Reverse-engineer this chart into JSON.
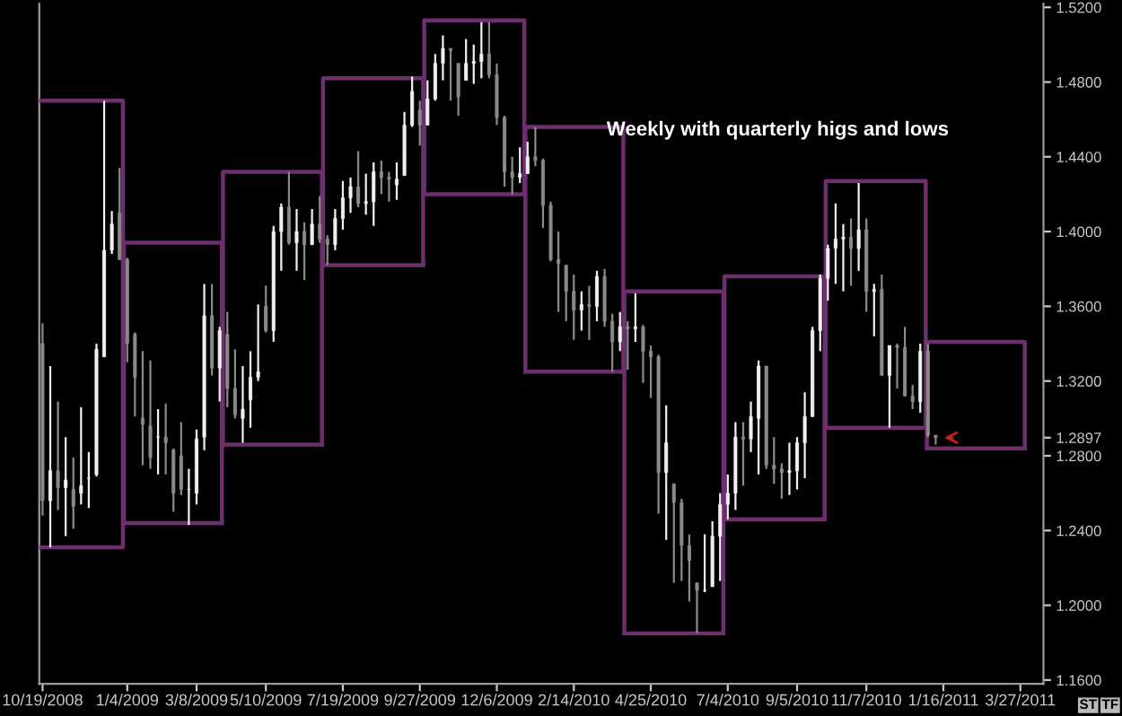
{
  "chart_data": {
    "type": "candlestick",
    "title": "Weekly with quarterly higs and lows",
    "xlim": [
      "2008-10-16",
      "2011-04-17"
    ],
    "ylim": [
      1.158,
      1.522
    ],
    "xticks": [
      {
        "value": "2008-10-19",
        "label": "10/19/2008"
      },
      {
        "value": "2009-01-04",
        "label": "1/4/2009"
      },
      {
        "value": "2009-03-08",
        "label": "3/8/2009"
      },
      {
        "value": "2009-05-10",
        "label": "5/10/2009"
      },
      {
        "value": "2009-07-19",
        "label": "7/19/2009"
      },
      {
        "value": "2009-09-27",
        "label": "9/27/2009"
      },
      {
        "value": "2009-12-06",
        "label": "12/6/2009"
      },
      {
        "value": "2010-02-14",
        "label": "2/14/2010"
      },
      {
        "value": "2010-04-25",
        "label": "4/25/2010"
      },
      {
        "value": "2010-07-04",
        "label": "7/4/2010"
      },
      {
        "value": "2010-09-05",
        "label": "9/5/2010"
      },
      {
        "value": "2010-11-07",
        "label": "11/7/2010"
      },
      {
        "value": "2011-01-16",
        "label": "1/16/2011"
      },
      {
        "value": "2011-03-27",
        "label": "3/27/2011"
      }
    ],
    "yticks": [
      {
        "value": 1.16,
        "label": "1.1600"
      },
      {
        "value": 1.2,
        "label": "1.2000"
      },
      {
        "value": 1.24,
        "label": "1.2400"
      },
      {
        "value": 1.28,
        "label": "1.2800"
      },
      {
        "value": 1.2897,
        "label": "1.2897"
      },
      {
        "value": 1.32,
        "label": "1.3200"
      },
      {
        "value": 1.36,
        "label": "1.3600"
      },
      {
        "value": 1.4,
        "label": "1.4000"
      },
      {
        "value": 1.44,
        "label": "1.4400"
      },
      {
        "value": 1.48,
        "label": "1.4800"
      },
      {
        "value": 1.52,
        "label": "1.5200"
      }
    ],
    "annotations": [
      "ST",
      "TF"
    ],
    "color": [
      "#f0f0f0",
      "#8a8a8a"
    ],
    "x": [
      "2008-10-19",
      "2008-10-26",
      "2008-11-02",
      "2008-11-09",
      "2008-11-16",
      "2008-11-23",
      "2008-11-30",
      "2008-12-07",
      "2008-12-14",
      "2008-12-21",
      "2008-12-28",
      "2009-01-04",
      "2009-01-11",
      "2009-01-18",
      "2009-01-25",
      "2009-02-01",
      "2009-02-08",
      "2009-02-15",
      "2009-02-22",
      "2009-03-01",
      "2009-03-08",
      "2009-03-15",
      "2009-03-22",
      "2009-03-29",
      "2009-04-05",
      "2009-04-12",
      "2009-04-19",
      "2009-04-26",
      "2009-05-03",
      "2009-05-10",
      "2009-05-17",
      "2009-05-24",
      "2009-05-31",
      "2009-06-07",
      "2009-06-14",
      "2009-06-21",
      "2009-06-28",
      "2009-07-05",
      "2009-07-12",
      "2009-07-19",
      "2009-07-26",
      "2009-08-02",
      "2009-08-09",
      "2009-08-16",
      "2009-08-23",
      "2009-08-30",
      "2009-09-06",
      "2009-09-13",
      "2009-09-20",
      "2009-09-27",
      "2009-10-04",
      "2009-10-11",
      "2009-10-18",
      "2009-10-25",
      "2009-11-01",
      "2009-11-08",
      "2009-11-15",
      "2009-11-22",
      "2009-11-29",
      "2009-12-06",
      "2009-12-13",
      "2009-12-20",
      "2009-12-27",
      "2010-01-03",
      "2010-01-10",
      "2010-01-17",
      "2010-01-24",
      "2010-01-31",
      "2010-02-07",
      "2010-02-14",
      "2010-02-21",
      "2010-02-28",
      "2010-03-07",
      "2010-03-14",
      "2010-03-21",
      "2010-03-28",
      "2010-04-04",
      "2010-04-11",
      "2010-04-18",
      "2010-04-25",
      "2010-05-02",
      "2010-05-09",
      "2010-05-16",
      "2010-05-23",
      "2010-05-30",
      "2010-06-06",
      "2010-06-13",
      "2010-06-20",
      "2010-06-27",
      "2010-07-04",
      "2010-07-11",
      "2010-07-18",
      "2010-07-25",
      "2010-08-01",
      "2010-08-08",
      "2010-08-15",
      "2010-08-22",
      "2010-08-29",
      "2010-09-05",
      "2010-09-12",
      "2010-09-19",
      "2010-09-26",
      "2010-10-03",
      "2010-10-10",
      "2010-10-17",
      "2010-10-24",
      "2010-10-31",
      "2010-11-07",
      "2010-11-14",
      "2010-11-21",
      "2010-11-28",
      "2010-12-05",
      "2010-12-12",
      "2010-12-19",
      "2010-12-26",
      "2011-01-02",
      "2011-01-09"
    ],
    "ohlc": [
      [
        1.34,
        1.351,
        1.248,
        1.256
      ],
      [
        1.256,
        1.328,
        1.231,
        1.272
      ],
      [
        1.272,
        1.309,
        1.251,
        1.263
      ],
      [
        1.263,
        1.29,
        1.237,
        1.267
      ],
      [
        1.262,
        1.279,
        1.241,
        1.253
      ],
      [
        1.26,
        1.306,
        1.254,
        1.264
      ],
      [
        1.268,
        1.282,
        1.252,
        1.268
      ],
      [
        1.27,
        1.34,
        1.269,
        1.337
      ],
      [
        1.333,
        1.47,
        1.333,
        1.39
      ],
      [
        1.39,
        1.411,
        1.388,
        1.404
      ],
      [
        1.41,
        1.434,
        1.385,
        1.385
      ],
      [
        1.385,
        1.386,
        1.33,
        1.34
      ],
      [
        1.345,
        1.346,
        1.301,
        1.322
      ],
      [
        1.3,
        1.336,
        1.275,
        1.297
      ],
      [
        1.296,
        1.331,
        1.273,
        1.279
      ],
      [
        1.29,
        1.305,
        1.27,
        1.29
      ],
      [
        1.29,
        1.308,
        1.27,
        1.287
      ],
      [
        1.283,
        1.284,
        1.25,
        1.26
      ],
      [
        1.28,
        1.298,
        1.259,
        1.262
      ],
      [
        1.262,
        1.273,
        1.243,
        1.262
      ],
      [
        1.26,
        1.294,
        1.254,
        1.289
      ],
      [
        1.29,
        1.372,
        1.283,
        1.355
      ],
      [
        1.355,
        1.372,
        1.323,
        1.327
      ],
      [
        1.327,
        1.349,
        1.309,
        1.347
      ],
      [
        1.345,
        1.357,
        1.306,
        1.316
      ],
      [
        1.316,
        1.337,
        1.3,
        1.302
      ],
      [
        1.3,
        1.328,
        1.287,
        1.305
      ],
      [
        1.31,
        1.336,
        1.295,
        1.322
      ],
      [
        1.322,
        1.361,
        1.32,
        1.325
      ],
      [
        1.36,
        1.371,
        1.346,
        1.347
      ],
      [
        1.347,
        1.403,
        1.341,
        1.4
      ],
      [
        1.4,
        1.415,
        1.379,
        1.413
      ],
      [
        1.413,
        1.432,
        1.393,
        1.394
      ],
      [
        1.394,
        1.412,
        1.379,
        1.4
      ],
      [
        1.4,
        1.405,
        1.374,
        1.393
      ],
      [
        1.393,
        1.412,
        1.393,
        1.404
      ],
      [
        1.404,
        1.419,
        1.394,
        1.396
      ],
      [
        1.396,
        1.398,
        1.382,
        1.393
      ],
      [
        1.393,
        1.412,
        1.39,
        1.407
      ],
      [
        1.407,
        1.427,
        1.401,
        1.418
      ],
      [
        1.418,
        1.429,
        1.41,
        1.424
      ],
      [
        1.424,
        1.443,
        1.413,
        1.415
      ],
      [
        1.415,
        1.431,
        1.409,
        1.416
      ],
      [
        1.416,
        1.437,
        1.403,
        1.432
      ],
      [
        1.432,
        1.438,
        1.42,
        1.429
      ],
      [
        1.429,
        1.432,
        1.416,
        1.428
      ],
      [
        1.425,
        1.437,
        1.417,
        1.428
      ],
      [
        1.43,
        1.464,
        1.43,
        1.457
      ],
      [
        1.457,
        1.483,
        1.456,
        1.475
      ],
      [
        1.465,
        1.47,
        1.446,
        1.457
      ],
      [
        1.457,
        1.481,
        1.457,
        1.471
      ],
      [
        1.471,
        1.495,
        1.47,
        1.49
      ],
      [
        1.49,
        1.505,
        1.481,
        1.498
      ],
      [
        1.498,
        1.498,
        1.47,
        1.497
      ],
      [
        1.49,
        1.49,
        1.462,
        1.472
      ],
      [
        1.481,
        1.503,
        1.481,
        1.49
      ],
      [
        1.49,
        1.5,
        1.479,
        1.491
      ],
      [
        1.491,
        1.512,
        1.482,
        1.495
      ],
      [
        1.495,
        1.512,
        1.482,
        1.484
      ],
      [
        1.484,
        1.49,
        1.457,
        1.461
      ],
      [
        1.461,
        1.462,
        1.424,
        1.432
      ],
      [
        1.432,
        1.44,
        1.42,
        1.429
      ],
      [
        1.429,
        1.445,
        1.426,
        1.431
      ],
      [
        1.431,
        1.448,
        1.431,
        1.44
      ],
      [
        1.44,
        1.456,
        1.435,
        1.438
      ],
      [
        1.438,
        1.439,
        1.402,
        1.414
      ],
      [
        1.414,
        1.416,
        1.384,
        1.385
      ],
      [
        1.385,
        1.4,
        1.357,
        1.383
      ],
      [
        1.382,
        1.382,
        1.352,
        1.368
      ],
      [
        1.368,
        1.377,
        1.342,
        1.358
      ],
      [
        1.358,
        1.368,
        1.347,
        1.361
      ],
      [
        1.361,
        1.371,
        1.342,
        1.36
      ],
      [
        1.36,
        1.379,
        1.352,
        1.376
      ],
      [
        1.376,
        1.38,
        1.349,
        1.352
      ],
      [
        1.352,
        1.356,
        1.325,
        1.341
      ],
      [
        1.341,
        1.357,
        1.336,
        1.349
      ],
      [
        1.349,
        1.352,
        1.326,
        1.348
      ],
      [
        1.348,
        1.367,
        1.341,
        1.349
      ],
      [
        1.349,
        1.35,
        1.319,
        1.336
      ],
      [
        1.336,
        1.339,
        1.311,
        1.333
      ],
      [
        1.333,
        1.334,
        1.249,
        1.271
      ],
      [
        1.271,
        1.307,
        1.235,
        1.287
      ],
      [
        1.265,
        1.265,
        1.212,
        1.255
      ],
      [
        1.255,
        1.257,
        1.213,
        1.232
      ],
      [
        1.232,
        1.238,
        1.202,
        1.224
      ],
      [
        1.212,
        1.212,
        1.185,
        1.208
      ],
      [
        1.208,
        1.238,
        1.207,
        1.208
      ],
      [
        1.21,
        1.245,
        1.21,
        1.237
      ],
      [
        1.237,
        1.26,
        1.213,
        1.254
      ],
      [
        1.254,
        1.27,
        1.246,
        1.26
      ],
      [
        1.26,
        1.298,
        1.251,
        1.29
      ],
      [
        1.29,
        1.298,
        1.264,
        1.289
      ],
      [
        1.289,
        1.309,
        1.282,
        1.301
      ],
      [
        1.3,
        1.331,
        1.27,
        1.328
      ],
      [
        1.328,
        1.328,
        1.273,
        1.275
      ],
      [
        1.275,
        1.29,
        1.265,
        1.273
      ],
      [
        1.273,
        1.276,
        1.257,
        1.271
      ],
      [
        1.271,
        1.287,
        1.259,
        1.272
      ],
      [
        1.272,
        1.29,
        1.262,
        1.287
      ],
      [
        1.287,
        1.314,
        1.268,
        1.301
      ],
      [
        1.301,
        1.349,
        1.301,
        1.347
      ],
      [
        1.347,
        1.377,
        1.336,
        1.375
      ],
      [
        1.375,
        1.393,
        1.363,
        1.391
      ],
      [
        1.391,
        1.415,
        1.372,
        1.396
      ],
      [
        1.396,
        1.404,
        1.368,
        1.397
      ],
      [
        1.397,
        1.407,
        1.371,
        1.391
      ],
      [
        1.391,
        1.426,
        1.379,
        1.401
      ],
      [
        1.401,
        1.407,
        1.357,
        1.368
      ],
      [
        1.368,
        1.372,
        1.344,
        1.369
      ],
      [
        1.369,
        1.377,
        1.323,
        1.323
      ],
      [
        1.323,
        1.339,
        1.295,
        1.339
      ],
      [
        1.339,
        1.34,
        1.316,
        1.338
      ],
      [
        1.338,
        1.349,
        1.312,
        1.312
      ],
      [
        1.312,
        1.318,
        1.305,
        1.309
      ],
      [
        1.309,
        1.34,
        1.303,
        1.336
      ],
      [
        1.336,
        1.34,
        1.29,
        1.291
      ],
      [
        1.291,
        1.291,
        1.286,
        1.2897
      ]
    ],
    "series": [
      {
        "type": "line",
        "color": "#6e2f6e",
        "x": [
          "2008-10-16",
          "2008-12-31",
          "2008-12-31",
          "2008-10-16"
        ],
        "values": [
          1.231,
          1.231,
          1.47,
          1.47
        ]
      },
      {
        "type": "line",
        "color": "#6e2f6e",
        "x": [
          "2009-01-01",
          "2009-03-31"
        ],
        "values": [
          1.244,
          1.244
        ]
      },
      {
        "type": "line",
        "color": "#6e2f6e",
        "x": [
          "2009-04-01",
          "2009-06-30"
        ],
        "values": [
          1.286,
          1.286
        ]
      },
      {
        "type": "line",
        "color": "#6e2f6e",
        "x": [
          "2009-07-01",
          "2009-09-30"
        ],
        "values": [
          1.382,
          1.382
        ]
      },
      {
        "type": "line",
        "color": "#6e2f6e",
        "x": [
          "2009-10-01",
          "2009-12-31"
        ],
        "values": [
          1.42,
          1.42
        ]
      },
      {
        "type": "line",
        "color": "#6e2f6e",
        "x": [
          "2010-01-01",
          "2010-03-31"
        ],
        "values": [
          1.325,
          1.325
        ]
      },
      {
        "type": "line",
        "color": "#6e2f6e",
        "x": [
          "2010-04-01",
          "2010-06-30"
        ],
        "values": [
          1.185,
          1.185
        ]
      },
      {
        "type": "line",
        "color": "#6e2f6e",
        "x": [
          "2010-07-01",
          "2010-09-30"
        ],
        "values": [
          1.246,
          1.246
        ]
      },
      {
        "type": "line",
        "color": "#6e2f6e",
        "x": [
          "2010-10-01",
          "2010-12-31"
        ],
        "values": [
          1.295,
          1.295
        ]
      },
      {
        "type": "line",
        "color": "#6e2f6e",
        "x": [
          "2011-01-01",
          "2011-03-31"
        ],
        "values": [
          1.284,
          1.284
        ]
      },
      {
        "type": "line",
        "color": "#6e2f6e",
        "x": [
          "2009-01-01",
          "2009-01-01",
          "2009-03-31",
          "2009-03-31"
        ],
        "values": [
          1.244,
          1.394,
          1.394,
          1.244
        ]
      },
      {
        "type": "line",
        "color": "#6e2f6e",
        "x": [
          "2009-04-01",
          "2009-04-01",
          "2009-06-30",
          "2009-06-30"
        ],
        "values": [
          1.286,
          1.432,
          1.432,
          1.286
        ]
      },
      {
        "type": "line",
        "color": "#6e2f6e",
        "x": [
          "2009-07-01",
          "2009-07-01",
          "2009-09-30",
          "2009-09-30"
        ],
        "values": [
          1.382,
          1.482,
          1.482,
          1.382
        ]
      },
      {
        "type": "line",
        "color": "#6e2f6e",
        "x": [
          "2009-10-01",
          "2009-10-01",
          "2009-12-31",
          "2009-12-31"
        ],
        "values": [
          1.42,
          1.513,
          1.513,
          1.42
        ]
      },
      {
        "type": "line",
        "color": "#6e2f6e",
        "x": [
          "2010-01-01",
          "2010-01-01",
          "2010-03-31",
          "2010-03-31"
        ],
        "values": [
          1.325,
          1.456,
          1.456,
          1.325
        ]
      },
      {
        "type": "line",
        "color": "#6e2f6e",
        "x": [
          "2010-04-01",
          "2010-04-01",
          "2010-06-30",
          "2010-06-30"
        ],
        "values": [
          1.185,
          1.368,
          1.368,
          1.185
        ]
      },
      {
        "type": "line",
        "color": "#6e2f6e",
        "x": [
          "2010-07-01",
          "2010-07-01",
          "2010-09-30",
          "2010-09-30"
        ],
        "values": [
          1.246,
          1.376,
          1.376,
          1.246
        ]
      },
      {
        "type": "line",
        "color": "#6e2f6e",
        "x": [
          "2010-10-01",
          "2010-10-01",
          "2010-12-31",
          "2010-12-31"
        ],
        "values": [
          1.295,
          1.427,
          1.427,
          1.295
        ]
      },
      {
        "type": "line",
        "color": "#6e2f6e",
        "x": [
          "2011-01-01",
          "2011-01-01",
          "2011-03-31",
          "2011-03-31"
        ],
        "values": [
          1.284,
          1.341,
          1.341,
          1.284
        ]
      }
    ]
  }
}
